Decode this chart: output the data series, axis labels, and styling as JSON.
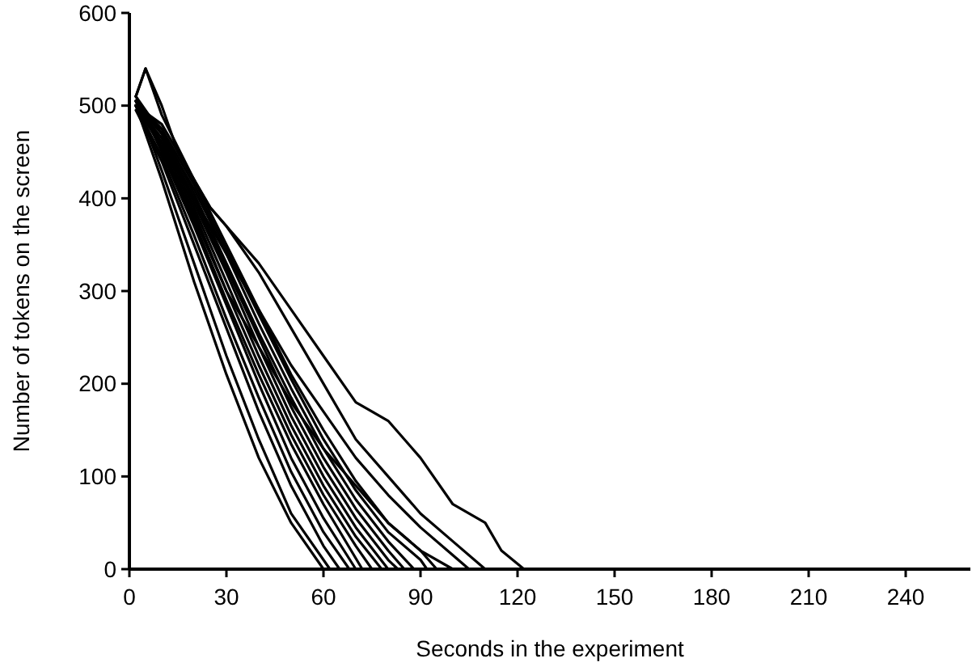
{
  "chart_data": {
    "type": "line",
    "xlabel": "Seconds in the experiment",
    "ylabel": "Number of tokens on the screen",
    "xlim": [
      0,
      260
    ],
    "ylim": [
      0,
      600
    ],
    "xticks": [
      0,
      30,
      60,
      90,
      120,
      150,
      180,
      210,
      240
    ],
    "yticks": [
      0,
      100,
      200,
      300,
      400,
      500,
      600
    ],
    "grid": false,
    "marker": "none",
    "line_style": "solid",
    "series": [
      {
        "color": "#000000",
        "x": [
          2,
          5,
          10,
          15,
          20,
          25,
          30,
          40,
          50,
          60,
          70,
          80,
          90,
          100,
          110,
          115,
          122
        ],
        "values": [
          510,
          540,
          500,
          450,
          420,
          390,
          370,
          330,
          280,
          230,
          180,
          160,
          120,
          70,
          50,
          20,
          0
        ]
      },
      {
        "color": "#000000",
        "x": [
          2,
          5,
          10,
          20,
          25,
          30,
          40,
          50,
          60,
          70,
          80,
          90,
          100,
          110
        ],
        "values": [
          510,
          540,
          490,
          420,
          390,
          370,
          320,
          260,
          200,
          140,
          100,
          60,
          30,
          0
        ]
      },
      {
        "color": "#000000",
        "x": [
          2,
          10,
          20,
          30,
          40,
          50,
          60,
          70,
          80,
          90,
          100,
          105
        ],
        "values": [
          500,
          460,
          400,
          340,
          280,
          220,
          170,
          120,
          80,
          45,
          15,
          0
        ]
      },
      {
        "color": "#000000",
        "x": [
          2,
          10,
          20,
          30,
          40,
          50,
          60,
          70,
          80,
          90,
          100
        ],
        "values": [
          505,
          455,
          380,
          300,
          240,
          180,
          130,
          90,
          50,
          20,
          0
        ]
      },
      {
        "color": "#000000",
        "x": [
          2,
          10,
          20,
          30,
          40,
          50,
          60
        ],
        "values": [
          500,
          420,
          310,
          210,
          120,
          50,
          0
        ]
      },
      {
        "color": "#000000",
        "x": [
          2,
          10,
          20,
          30,
          40,
          50,
          62
        ],
        "values": [
          505,
          430,
          330,
          230,
          140,
          60,
          0
        ]
      },
      {
        "color": "#000000",
        "x": [
          2,
          10,
          20,
          30,
          40,
          50,
          60,
          65
        ],
        "values": [
          495,
          440,
          350,
          260,
          170,
          90,
          25,
          0
        ]
      },
      {
        "color": "#000000",
        "x": [
          2,
          10,
          20,
          30,
          40,
          50,
          60,
          68
        ],
        "values": [
          500,
          445,
          360,
          270,
          185,
          105,
          40,
          0
        ]
      },
      {
        "color": "#000000",
        "x": [
          2,
          10,
          20,
          30,
          40,
          50,
          60,
          70
        ],
        "values": [
          510,
          450,
          370,
          285,
          200,
          120,
          55,
          0
        ]
      },
      {
        "color": "#000000",
        "x": [
          2,
          10,
          20,
          30,
          40,
          50,
          60,
          72
        ],
        "values": [
          500,
          455,
          375,
          290,
          210,
          135,
          70,
          0
        ]
      },
      {
        "color": "#000000",
        "x": [
          2,
          10,
          20,
          30,
          40,
          50,
          60,
          70,
          75
        ],
        "values": [
          505,
          460,
          385,
          300,
          220,
          145,
          80,
          25,
          0
        ]
      },
      {
        "color": "#000000",
        "x": [
          2,
          10,
          20,
          30,
          40,
          50,
          60,
          70,
          78
        ],
        "values": [
          500,
          465,
          390,
          310,
          230,
          155,
          90,
          35,
          0
        ]
      },
      {
        "color": "#000000",
        "x": [
          2,
          10,
          20,
          30,
          40,
          50,
          60,
          70,
          80
        ],
        "values": [
          510,
          470,
          395,
          320,
          240,
          165,
          100,
          45,
          0
        ]
      },
      {
        "color": "#000000",
        "x": [
          2,
          10,
          20,
          30,
          40,
          50,
          60,
          70,
          80,
          83
        ],
        "values": [
          505,
          470,
          400,
          325,
          250,
          175,
          110,
          55,
          10,
          0
        ]
      },
      {
        "color": "#000000",
        "x": [
          2,
          10,
          20,
          30,
          40,
          50,
          60,
          70,
          80,
          85
        ],
        "values": [
          500,
          475,
          405,
          330,
          255,
          185,
          120,
          65,
          20,
          0
        ]
      },
      {
        "color": "#000000",
        "x": [
          2,
          10,
          20,
          30,
          40,
          50,
          60,
          70,
          80,
          88
        ],
        "values": [
          500,
          470,
          410,
          340,
          265,
          195,
          130,
          75,
          30,
          0
        ]
      },
      {
        "color": "#000000",
        "x": [
          2,
          10,
          20,
          30,
          40,
          50,
          60,
          70,
          80,
          90,
          92
        ],
        "values": [
          505,
          475,
          415,
          345,
          275,
          205,
          140,
          85,
          40,
          10,
          0
        ]
      },
      {
        "color": "#000000",
        "x": [
          2,
          10,
          20,
          30,
          40,
          50,
          60,
          70,
          80,
          90,
          95
        ],
        "values": [
          500,
          480,
          420,
          350,
          280,
          210,
          150,
          95,
          50,
          20,
          0
        ]
      }
    ]
  }
}
